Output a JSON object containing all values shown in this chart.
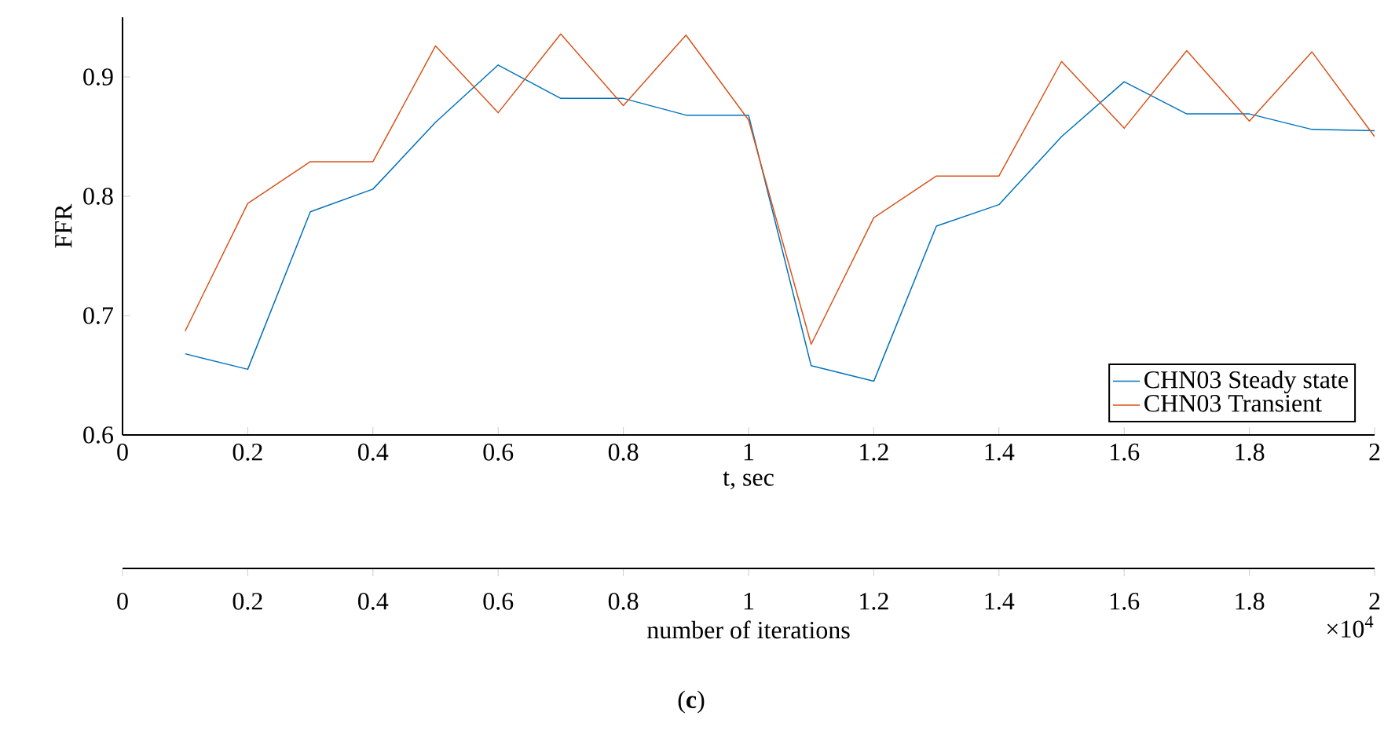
{
  "chart_data": {
    "type": "line",
    "xlabel": "t, sec",
    "ylabel": "FFR",
    "x2label": "number of iterations",
    "x": [
      0.1,
      0.2,
      0.3,
      0.4,
      0.5,
      0.6,
      0.7,
      0.8,
      0.9,
      1.0,
      1.1,
      1.2,
      1.3,
      1.4,
      1.5,
      1.6,
      1.7,
      1.8,
      1.9,
      2.0
    ],
    "series": [
      {
        "name": "CHN03 Steady state",
        "color": "#0072bd",
        "values": [
          0.668,
          0.655,
          0.787,
          0.806,
          0.862,
          0.91,
          0.882,
          0.882,
          0.868,
          0.868,
          0.658,
          0.645,
          0.775,
          0.793,
          0.85,
          0.896,
          0.869,
          0.869,
          0.856,
          0.855
        ]
      },
      {
        "name": "CHN03 Transient",
        "color": "#d95319",
        "values": [
          0.687,
          0.794,
          0.829,
          0.829,
          0.926,
          0.87,
          0.936,
          0.876,
          0.935,
          0.864,
          0.676,
          0.782,
          0.817,
          0.817,
          0.913,
          0.857,
          0.922,
          0.863,
          0.921,
          0.85
        ]
      }
    ],
    "xlim": [
      0,
      2
    ],
    "xticks": [
      0,
      0.2,
      0.4,
      0.6,
      0.8,
      1,
      1.2,
      1.4,
      1.6,
      1.8,
      2
    ],
    "ylim": [
      0.6,
      0.95
    ],
    "yticks": [
      0.6,
      0.7,
      0.8,
      0.9
    ],
    "x2lim": [
      0,
      2
    ],
    "x2ticks": [
      0,
      0.2,
      0.4,
      0.6,
      0.8,
      1,
      1.2,
      1.4,
      1.6,
      1.8,
      2
    ],
    "legend": "bottom right",
    "line_style": "solid",
    "annotations": [
      "×10$^{4}$",
      "(**c**)"
    ]
  }
}
